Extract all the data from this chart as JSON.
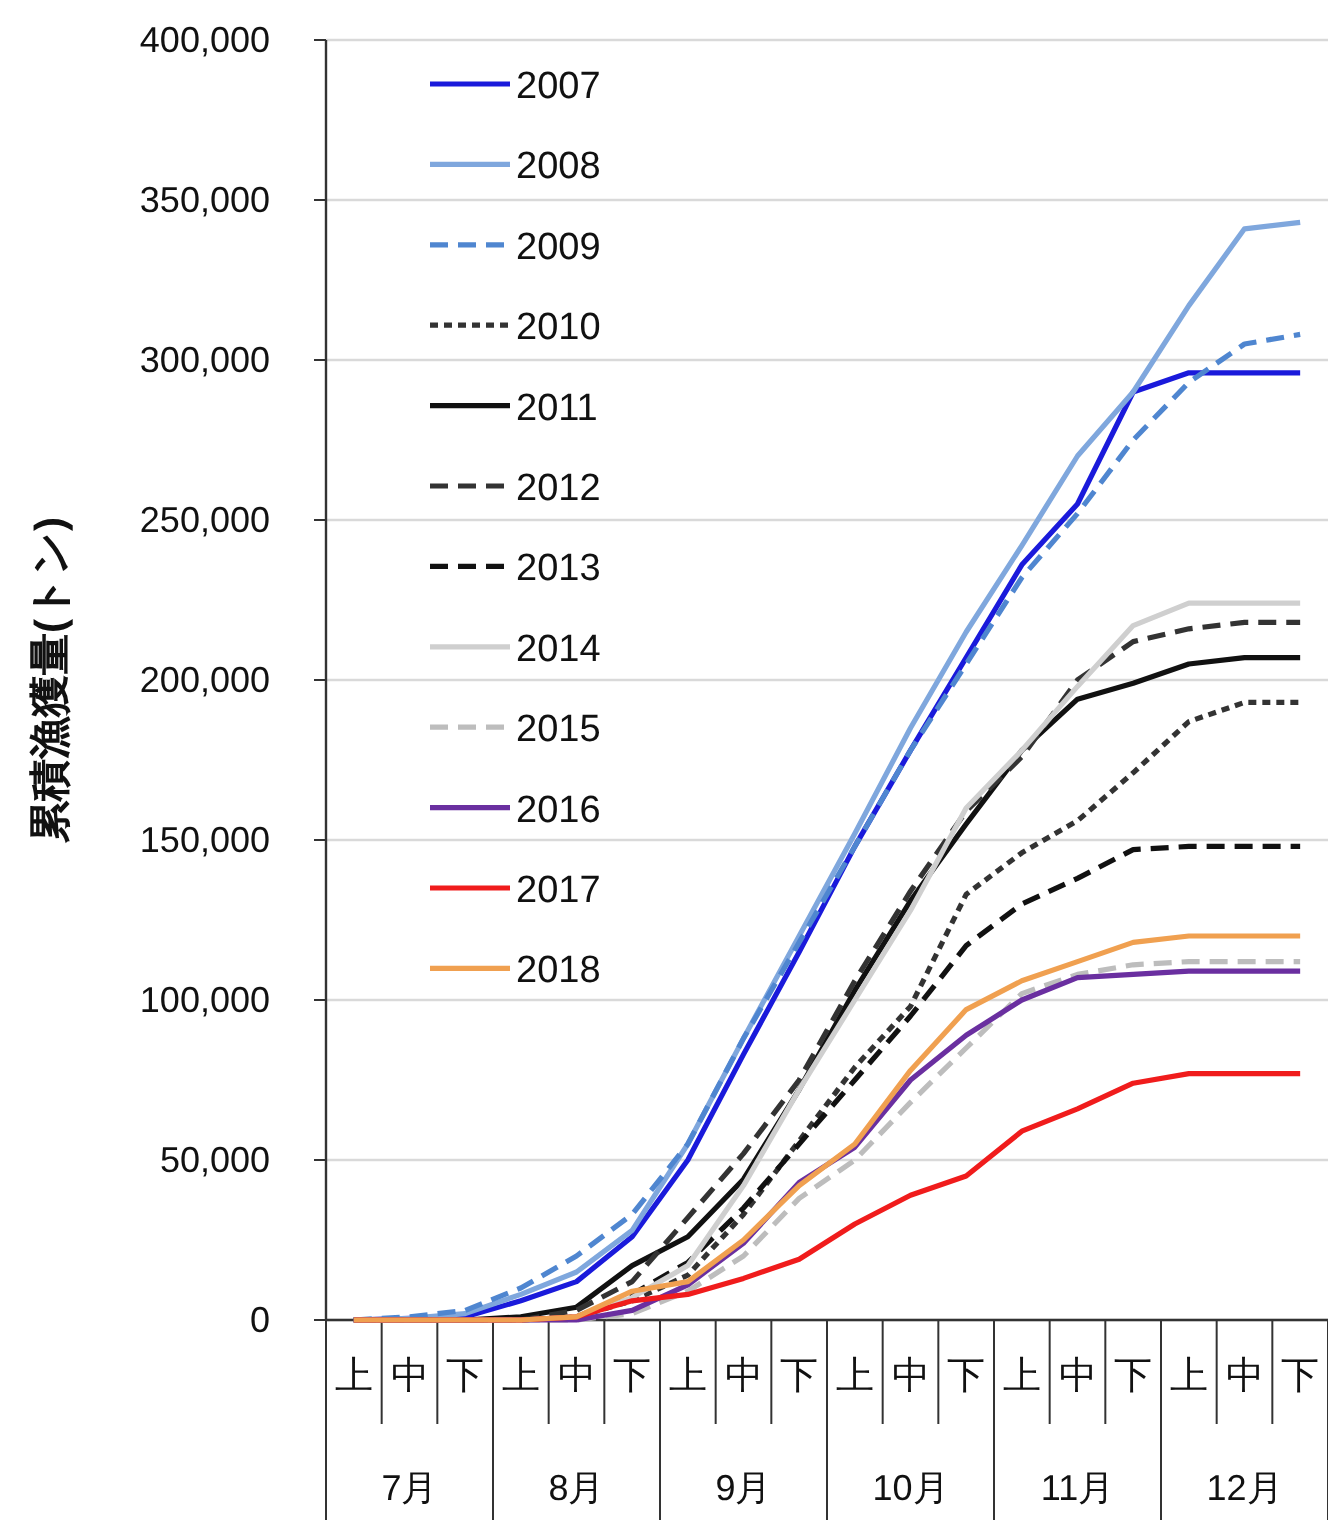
{
  "chart_data": {
    "type": "line",
    "ylabel": "累積漁獲量(トン)",
    "categories": [
      "上",
      "中",
      "下",
      "上",
      "中",
      "下",
      "上",
      "中",
      "下",
      "上",
      "中",
      "下",
      "上",
      "中",
      "下",
      "上",
      "中",
      "下"
    ],
    "annotations": [
      "7月",
      "8月",
      "9月",
      "10月",
      "11月",
      "12月"
    ],
    "ylim": [
      0,
      400000
    ],
    "yticks": [
      {
        "value": 0,
        "label": "0"
      },
      {
        "value": 50000,
        "label": "50,000"
      },
      {
        "value": 100000,
        "label": "100,000"
      },
      {
        "value": 150000,
        "label": "150,000"
      },
      {
        "value": 200000,
        "label": "200,000"
      },
      {
        "value": 250000,
        "label": "250,000"
      },
      {
        "value": 300000,
        "label": "300,000"
      },
      {
        "value": 350000,
        "label": "350,000"
      },
      {
        "value": 400000,
        "label": "400,000"
      }
    ],
    "grid": "y",
    "legend": "top left",
    "marker": "none",
    "series": [
      {
        "name": "2007",
        "color": "#1a1adb",
        "line_style": "solid",
        "values": [
          0,
          500,
          1000,
          6000,
          12000,
          26000,
          50000,
          83000,
          115000,
          148000,
          178000,
          207000,
          236000,
          255000,
          290000,
          296000,
          296000,
          296000
        ]
      },
      {
        "name": "2008",
        "color": "#7fa7dd",
        "line_style": "solid",
        "values": [
          0,
          500,
          2000,
          8000,
          15000,
          28000,
          55000,
          88000,
          120000,
          152000,
          185000,
          215000,
          242000,
          270000,
          290000,
          317000,
          341000,
          343000
        ]
      },
      {
        "name": "2009",
        "color": "#4f86d0",
        "line_style": "dashed",
        "values": [
          0,
          1000,
          3000,
          10000,
          20000,
          33000,
          55000,
          88000,
          118000,
          148000,
          178000,
          205000,
          232000,
          252000,
          275000,
          293000,
          305000,
          308000
        ]
      },
      {
        "name": "2010",
        "color": "#333333",
        "line_style": "dotted",
        "values": [
          0,
          0,
          0,
          0,
          1000,
          6000,
          14000,
          33000,
          56000,
          79000,
          98000,
          133000,
          146000,
          156000,
          171000,
          187000,
          193000,
          193000
        ]
      },
      {
        "name": "2011",
        "color": "#111111",
        "line_style": "solid",
        "values": [
          0,
          0,
          0,
          1000,
          4000,
          17000,
          26000,
          44000,
          72000,
          103000,
          131000,
          155000,
          178000,
          194000,
          199000,
          205000,
          207000,
          207000
        ]
      },
      {
        "name": "2012",
        "color": "#333333",
        "line_style": "dashed",
        "values": [
          0,
          0,
          0,
          0,
          3000,
          12000,
          32000,
          52000,
          75000,
          106000,
          134000,
          159000,
          176000,
          200000,
          212000,
          216000,
          218000,
          218000
        ]
      },
      {
        "name": "2013",
        "color": "#111111",
        "line_style": "dashed",
        "values": [
          0,
          0,
          0,
          0,
          1000,
          8000,
          18000,
          35000,
          55000,
          75000,
          95000,
          117000,
          130000,
          138000,
          147000,
          148000,
          148000,
          148000
        ]
      },
      {
        "name": "2014",
        "color": "#cfcfcf",
        "line_style": "solid",
        "values": [
          0,
          0,
          0,
          0,
          1000,
          7000,
          17000,
          42000,
          72000,
          100000,
          128000,
          160000,
          178000,
          198000,
          217000,
          224000,
          224000,
          224000
        ]
      },
      {
        "name": "2015",
        "color": "#bdbdbd",
        "line_style": "dashed",
        "values": [
          0,
          0,
          0,
          0,
          0,
          2000,
          9000,
          20000,
          38000,
          50000,
          68000,
          85000,
          102000,
          108000,
          111000,
          112000,
          112000,
          112000
        ]
      },
      {
        "name": "2016",
        "color": "#6a2fa0",
        "line_style": "solid",
        "values": [
          0,
          0,
          0,
          0,
          0,
          3000,
          11000,
          24000,
          43000,
          54000,
          75000,
          89000,
          100000,
          107000,
          108000,
          109000,
          109000,
          109000
        ]
      },
      {
        "name": "2017",
        "color": "#f01c1c",
        "line_style": "solid",
        "values": [
          0,
          0,
          0,
          0,
          1000,
          6000,
          8000,
          13000,
          19000,
          30000,
          39000,
          45000,
          59000,
          66000,
          74000,
          77000,
          77000,
          77000
        ]
      },
      {
        "name": "2018",
        "color": "#f0a050",
        "line_style": "solid",
        "values": [
          0,
          0,
          0,
          0,
          1000,
          9000,
          12000,
          25000,
          42000,
          55000,
          78000,
          97000,
          106000,
          112000,
          118000,
          120000,
          120000,
          120000
        ]
      }
    ]
  }
}
